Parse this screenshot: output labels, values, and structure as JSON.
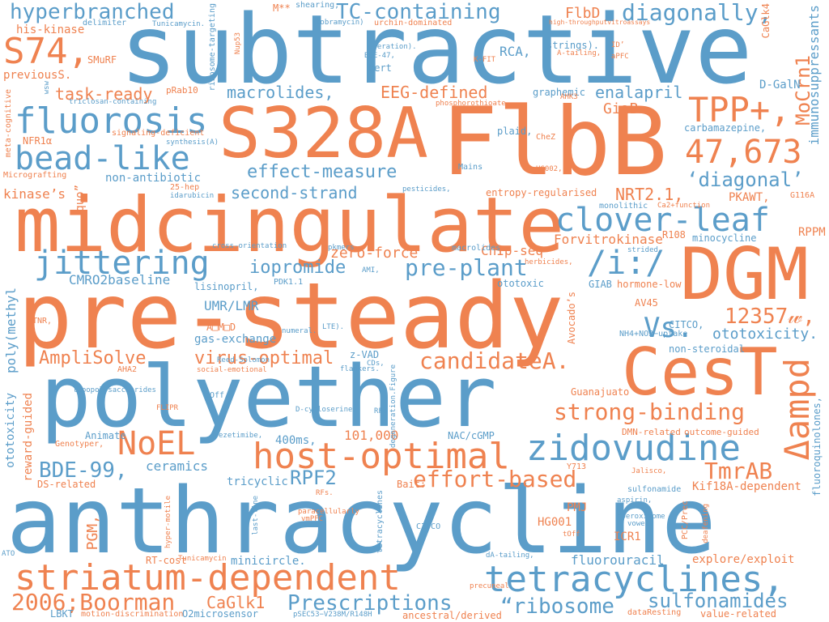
{
  "colors": {
    "blue": "#5b9dc9",
    "orange": "#ef8250",
    "background": "#ffffff"
  },
  "words": {
    "w001": "subtractive",
    "w002": "S328A",
    "w003": "FlbB",
    "w004": "midcingulate",
    "w005": "DGM",
    "w006": "pre-steady",
    "w007": "polyether",
    "w008": "CesT",
    "w009": "anthracycline",
    "w010": "striatum-dependent",
    "w011": "tetracyclines,",
    "w012": "host-optimal",
    "w013": "zidovudine",
    "w014": "Δampd",
    "w015": "fluorosis",
    "w016": "bead-like",
    "w017": "jittering",
    "w018": "clover-leaf",
    "w019": "TPP+,",
    "w020": "47,673",
    "w021": "hyperbranched",
    "w022": "TC-containing",
    "w023": "diagonally,",
    "w024": "S74,",
    "w025": "NoEL",
    "w026": "strong-binding",
    "w027": "effort-based",
    "w028": "2006;Boorman",
    "w029": "Prescriptions",
    "w030": "“ribosome",
    "w031": "sulfonamides",
    "w032": "TmrAB",
    "w033": "/i:/",
    "w034": "pre-plant",
    "w035": "candidateA.",
    "w036": "Vs.",
    "w037": "12357𝓌,",
    "w038": "effect-measure",
    "w039": "second-strand",
    "w040": "iopromide",
    "w041": "‘diagonal’",
    "w042": "NRT2.1,",
    "w043": "MoCrn1",
    "w044": "AmpliSolve",
    "w045": "virus-optimal",
    "w046": "BDE-99,",
    "w047": "RPF2",
    "w048": "CaGlk1",
    "w049": "fluorouracil",
    "w050": "task-ready",
    "w051": "macrolides,",
    "w052": "EEG-defined",
    "w053": "enalapril",
    "w054": "GiaB",
    "w055": "FlbD",
    "w056": "RCA,",
    "w057": "Pert",
    "w058": "zero-force",
    "w059": "ChIp-seq",
    "w060": "Forvitrokinase",
    "w061": "UMR/LMR",
    "w062": "CMRO2baseline",
    "w063": "PGM,",
    "w064": "ceramics",
    "w065": "101,000",
    "w066": "400ms,",
    "w067": "tricyclic",
    "w068": "ototoxicity.",
    "w069": "immunosuppressants",
    "w070": "D-GalN",
    "w071": "CaGlk4",
    "w072": "graphemic",
    "w073": "carbamazepine,",
    "w074": "kinase’s",
    "w075": "entropy-regularised",
    "w076": "PKAWT,",
    "w077": "minocycline",
    "w078": "R108",
    "w079": "RPPM",
    "w080": "his-kinase",
    "w081": "SMuRF",
    "w082": "previousS.",
    "w083": "pRab10",
    "w084": "NFR1α",
    "w085": "Micrografting",
    "w086": "non-antibiotic",
    "w087": "quo”",
    "w088": "25-hep",
    "w089": "idarubicin",
    "w090": "poly(methyl",
    "w091": "gas-exchange",
    "w092": "z-VAD",
    "w093": "CITCO,",
    "w094": "non-steroidal",
    "w095": "AV45",
    "w096": "GIAB",
    "w097": "hormone-low",
    "w098": "Avocado’s",
    "w099": "NH4+NO3−uptake",
    "w100": "ototoxic",
    "w101": "Guanajuato",
    "w102": "DMN-related",
    "w103": "outcome-guided",
    "w104": "Kif18A-dependent",
    "w105": "fluoroquinolones,",
    "w106": "HG001",
    "w107": "PMJ",
    "w108": "ICR1",
    "w109": "explore/exploit",
    "w110": "value-related",
    "w111": "minicircle.",
    "w112": "RT-cost",
    "w113": "LBKT",
    "w114": "motion-discrimination",
    "w115": "O2microsensor",
    "w116": "pSEC53−V238M/R148H",
    "w117": "ancestral/derived",
    "w118": "dataResting",
    "w119": "Animate",
    "w120": "Genotyper,",
    "w121": "DS-related",
    "w122": "ototoxicity",
    "w123": "reward-guided",
    "w124": "lisinopril,",
    "w125": "PDK1.1",
    "w126": "AHA2",
    "w127": "lipopolysaccharides",
    "w128": "Bait:",
    "w129": "NAC/cGMP",
    "w130": "Y713",
    "w131": "Jalisco,",
    "w132": "sulfonamide",
    "w133": "aspirin,",
    "w134": "PCC/Prec",
    "w135": "deafening",
    "w136": "“peroxisome",
    "w137": "vowel,",
    "w138": "tOff",
    "w139": "CITCO",
    "w140": "dA-tailing,",
    "w141": "precuneal",
    "w142": "paracellularly",
    "w143": "vmPFC",
    "w144": "last-line",
    "w145": "tetracyclines",
    "w146": "degeneration.Figure",
    "w147": "hyper-motile",
    "w148": "Tunicamycin",
    "w149": "ATO",
    "w150": "RFs.",
    "w151": "RFs",
    "w152": "D-cycloserine,",
    "w153": "sOff",
    "w154": "FLIPR",
    "w155": "ezetimibe,",
    "w156": "flankers.",
    "w157": "CDs,",
    "w158": "social-emotional",
    "w159": "Reed-Solomon",
    "w160": "numeral.",
    "w161": "LTE).",
    "w162": "AMI,",
    "w163": "cross-orientation",
    "w164": "pkmers",
    "w165": "herbicides,",
    "w166": "strided",
    "w167": "Ca2+function",
    "w168": "G116A",
    "w169": "monolithic",
    "w170": "macrolides",
    "w171": "pesticides,",
    "w172": "Mains",
    "w173": "HG002,",
    "w174": "CheZ",
    "w175": "plaid,",
    "w176": "phosphorothioate",
    "w177": "AHK3",
    "w178": "strings).",
    "w179": "ID’",
    "w180": "aPFC",
    "w181": "A-tailing,",
    "w182": "high-throughputvitroassays",
    "w183": "K-FIT",
    "w184": "operation).",
    "w185": "BDE-47,",
    "w186": "tobramycin)",
    "w187": "urchin-dominated",
    "w188": "shearing,",
    "w189": "M**",
    "w190": "Nup53",
    "w191": "ribosome-targeting",
    "w192": "Tunicamycin.",
    "w193": "delimiter",
    "w194": "wsw",
    "w195": "triclosan-containing",
    "w196": "meta-cognitive",
    "w197": "signaling-deficient",
    "w198": "synthesis(A)",
    "w199": "A□M□D",
    "w200": "TNR,"
  }
}
